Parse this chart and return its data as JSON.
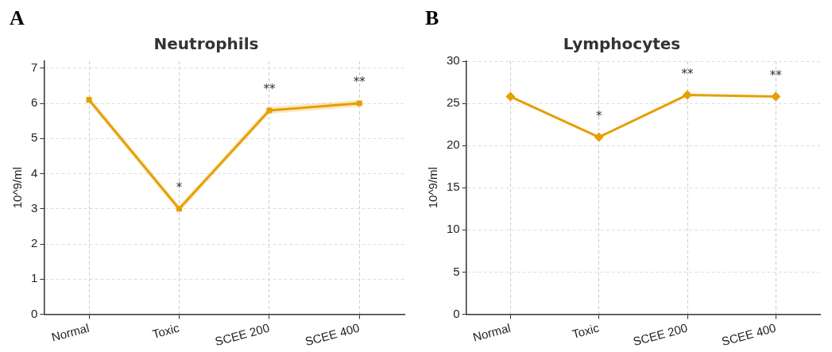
{
  "chart_data": [
    {
      "type": "line",
      "title": "Neutrophils",
      "ylabel": "10^9/ml",
      "categories": [
        "Normal",
        "Toxic",
        "SCEE 200",
        "SCEE 400"
      ],
      "series": [
        {
          "color": "#e69f00",
          "values": [
            6.1,
            3.0,
            5.8,
            6.0
          ],
          "lower": [
            6.0,
            2.9,
            5.7,
            5.9
          ],
          "upper": [
            6.2,
            3.1,
            5.9,
            6.1
          ]
        }
      ],
      "ylim": [
        0,
        7.2
      ],
      "yticks": [
        0,
        1,
        2,
        3,
        4,
        5,
        6,
        7
      ],
      "grid": true,
      "marker": "square",
      "line_style": "solid",
      "annotations": [
        "A",
        "*",
        "**",
        "**"
      ]
    },
    {
      "type": "line",
      "title": "Lymphocytes",
      "ylabel": "10^9/ml",
      "categories": [
        "Normal",
        "Toxic",
        "SCEE 200",
        "SCEE 400"
      ],
      "series": [
        {
          "color": "#e69f00",
          "values": [
            25.8,
            21,
            26,
            25.8
          ]
        }
      ],
      "ylim": [
        0,
        30
      ],
      "yticks": [
        0,
        5,
        10,
        15,
        20,
        25,
        30
      ],
      "grid": true,
      "marker": "diamond",
      "line_style": "solid",
      "annotations": [
        "B",
        "*",
        "**",
        "**"
      ]
    }
  ]
}
